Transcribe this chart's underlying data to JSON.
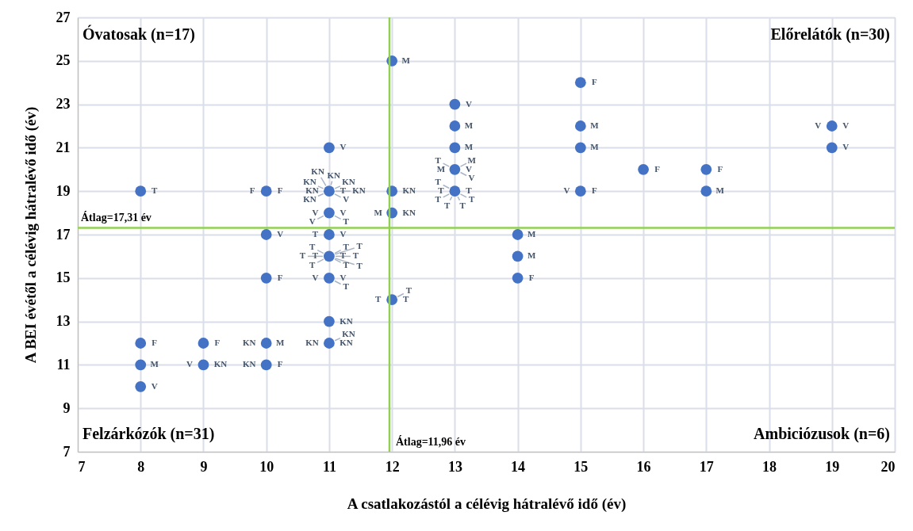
{
  "chart_data": {
    "type": "scatter",
    "xlabel": "A csatlakozástól a célévig hátralévő idő (év)",
    "ylabel": "A BEI évétől a célévig hátralévő idő (év)",
    "xlim": [
      7,
      20
    ],
    "xticks": [
      7,
      8,
      9,
      10,
      11,
      12,
      13,
      14,
      15,
      16,
      17,
      18,
      19,
      20
    ],
    "ylim": [
      7,
      27
    ],
    "yticks": [
      7,
      9,
      11,
      13,
      15,
      17,
      19,
      21,
      23,
      25,
      27
    ],
    "grid": true,
    "marker": "circle",
    "series": [
      {
        "color": "#4472c4",
        "x": [
          8,
          8,
          8,
          8,
          9,
          9,
          10,
          10,
          10,
          10,
          10,
          11,
          11,
          11,
          11,
          11,
          11,
          11,
          11,
          12,
          12,
          12,
          12,
          13,
          13,
          13,
          13,
          13,
          14,
          14,
          14,
          15,
          15,
          15,
          15,
          16,
          17,
          17,
          19,
          19
        ],
        "values": [
          19,
          12,
          11,
          10,
          12,
          11,
          19,
          17,
          15,
          12,
          11,
          21,
          19,
          18,
          17,
          16,
          15,
          13,
          12,
          25,
          19,
          18,
          14,
          23,
          22,
          21,
          20,
          19,
          17,
          16,
          15,
          24,
          22,
          21,
          19,
          20,
          20,
          19,
          22,
          21
        ]
      }
    ],
    "ref_lines": [
      {
        "axis": "y",
        "value": 17.31,
        "label": "Átlag=17,31 év",
        "color": "#92d050"
      },
      {
        "axis": "x",
        "value": 11.96,
        "label": "Átlag=11,96 év",
        "color": "#92d050"
      }
    ],
    "annotations": [
      "Óvatosak (n=17)",
      "Előrelátók (n=30)",
      "Felzárkózók (n=31)",
      "Ambiciózusok (n=6)",
      {
        "text": "T",
        "x": 8,
        "y": 19
      },
      {
        "text": "F",
        "x": 8,
        "y": 12
      },
      {
        "text": "M",
        "x": 8,
        "y": 11
      },
      {
        "text": "V",
        "x": 8,
        "y": 10
      },
      {
        "text": "F",
        "x": 9,
        "y": 12
      },
      {
        "text": "KN",
        "x": 9,
        "y": 11
      },
      {
        "text": "V",
        "x": 9,
        "y": 11
      },
      {
        "text": "F",
        "x": 10,
        "y": 19
      },
      {
        "text": "F",
        "x": 10,
        "y": 19
      },
      {
        "text": "V",
        "x": 10,
        "y": 17
      },
      {
        "text": "F",
        "x": 10,
        "y": 15
      },
      {
        "text": "M",
        "x": 10,
        "y": 12
      },
      {
        "text": "KN",
        "x": 10,
        "y": 12
      },
      {
        "text": "F",
        "x": 10,
        "y": 11
      },
      {
        "text": "KN",
        "x": 10,
        "y": 11
      },
      {
        "text": "V",
        "x": 11,
        "y": 21
      },
      {
        "text": "T",
        "x": 11,
        "y": 19
      },
      {
        "text": "KN",
        "x": 11,
        "y": 19
      },
      {
        "text": "KN",
        "x": 11,
        "y": 19
      },
      {
        "text": "V",
        "x": 11,
        "y": 19
      },
      {
        "text": "KN",
        "x": 11,
        "y": 19
      },
      {
        "text": "KN",
        "x": 11,
        "y": 19
      },
      {
        "text": "KN",
        "x": 11,
        "y": 19
      },
      {
        "text": "KN",
        "x": 11,
        "y": 19
      },
      {
        "text": "KN",
        "x": 11,
        "y": 19
      },
      {
        "text": "V",
        "x": 11,
        "y": 18
      },
      {
        "text": "V",
        "x": 11,
        "y": 18
      },
      {
        "text": "T",
        "x": 11,
        "y": 18
      },
      {
        "text": "V",
        "x": 11,
        "y": 18
      },
      {
        "text": "V",
        "x": 11,
        "y": 17
      },
      {
        "text": "T",
        "x": 11,
        "y": 17
      },
      {
        "text": "T",
        "x": 11,
        "y": 16
      },
      {
        "text": "T",
        "x": 11,
        "y": 16
      },
      {
        "text": "T",
        "x": 11,
        "y": 16
      },
      {
        "text": "T",
        "x": 11,
        "y": 16
      },
      {
        "text": "T",
        "x": 11,
        "y": 16
      },
      {
        "text": "T",
        "x": 11,
        "y": 16
      },
      {
        "text": "T",
        "x": 11,
        "y": 16
      },
      {
        "text": "T",
        "x": 11,
        "y": 16
      },
      {
        "text": "T",
        "x": 11,
        "y": 16
      },
      {
        "text": "T",
        "x": 11,
        "y": 16
      },
      {
        "text": "V",
        "x": 11,
        "y": 15
      },
      {
        "text": "V",
        "x": 11,
        "y": 15
      },
      {
        "text": "T",
        "x": 11,
        "y": 15
      },
      {
        "text": "KN",
        "x": 11,
        "y": 13
      },
      {
        "text": "KN",
        "x": 11,
        "y": 12
      },
      {
        "text": "KN",
        "x": 11,
        "y": 12
      },
      {
        "text": "KN",
        "x": 11,
        "y": 12
      },
      {
        "text": "M",
        "x": 12,
        "y": 25
      },
      {
        "text": "KN",
        "x": 12,
        "y": 19
      },
      {
        "text": "KN",
        "x": 12,
        "y": 18
      },
      {
        "text": "M",
        "x": 12,
        "y": 18
      },
      {
        "text": "T",
        "x": 12,
        "y": 14
      },
      {
        "text": "T",
        "x": 12,
        "y": 14
      },
      {
        "text": "T",
        "x": 12,
        "y": 14
      },
      {
        "text": "V",
        "x": 13,
        "y": 23
      },
      {
        "text": "M",
        "x": 13,
        "y": 22
      },
      {
        "text": "M",
        "x": 13,
        "y": 21
      },
      {
        "text": "V",
        "x": 13,
        "y": 20
      },
      {
        "text": "M",
        "x": 13,
        "y": 20
      },
      {
        "text": "M",
        "x": 13,
        "y": 20
      },
      {
        "text": "V",
        "x": 13,
        "y": 20
      },
      {
        "text": "T",
        "x": 13,
        "y": 20
      },
      {
        "text": "T",
        "x": 13,
        "y": 19
      },
      {
        "text": "T",
        "x": 13,
        "y": 19
      },
      {
        "text": "T",
        "x": 13,
        "y": 19
      },
      {
        "text": "T",
        "x": 13,
        "y": 19
      },
      {
        "text": "T",
        "x": 13,
        "y": 19
      },
      {
        "text": "T",
        "x": 13,
        "y": 19
      },
      {
        "text": "T",
        "x": 13,
        "y": 19
      },
      {
        "text": "M",
        "x": 14,
        "y": 17
      },
      {
        "text": "M",
        "x": 14,
        "y": 16
      },
      {
        "text": "F",
        "x": 14,
        "y": 15
      },
      {
        "text": "F",
        "x": 15,
        "y": 24
      },
      {
        "text": "M",
        "x": 15,
        "y": 22
      },
      {
        "text": "M",
        "x": 15,
        "y": 21
      },
      {
        "text": "F",
        "x": 15,
        "y": 19
      },
      {
        "text": "V",
        "x": 15,
        "y": 19
      },
      {
        "text": "F",
        "x": 16,
        "y": 20
      },
      {
        "text": "F",
        "x": 17,
        "y": 20
      },
      {
        "text": "M",
        "x": 17,
        "y": 19
      },
      {
        "text": "V",
        "x": 19,
        "y": 22
      },
      {
        "text": "V",
        "x": 19,
        "y": 22
      },
      {
        "text": "V",
        "x": 19,
        "y": 21
      }
    ]
  }
}
